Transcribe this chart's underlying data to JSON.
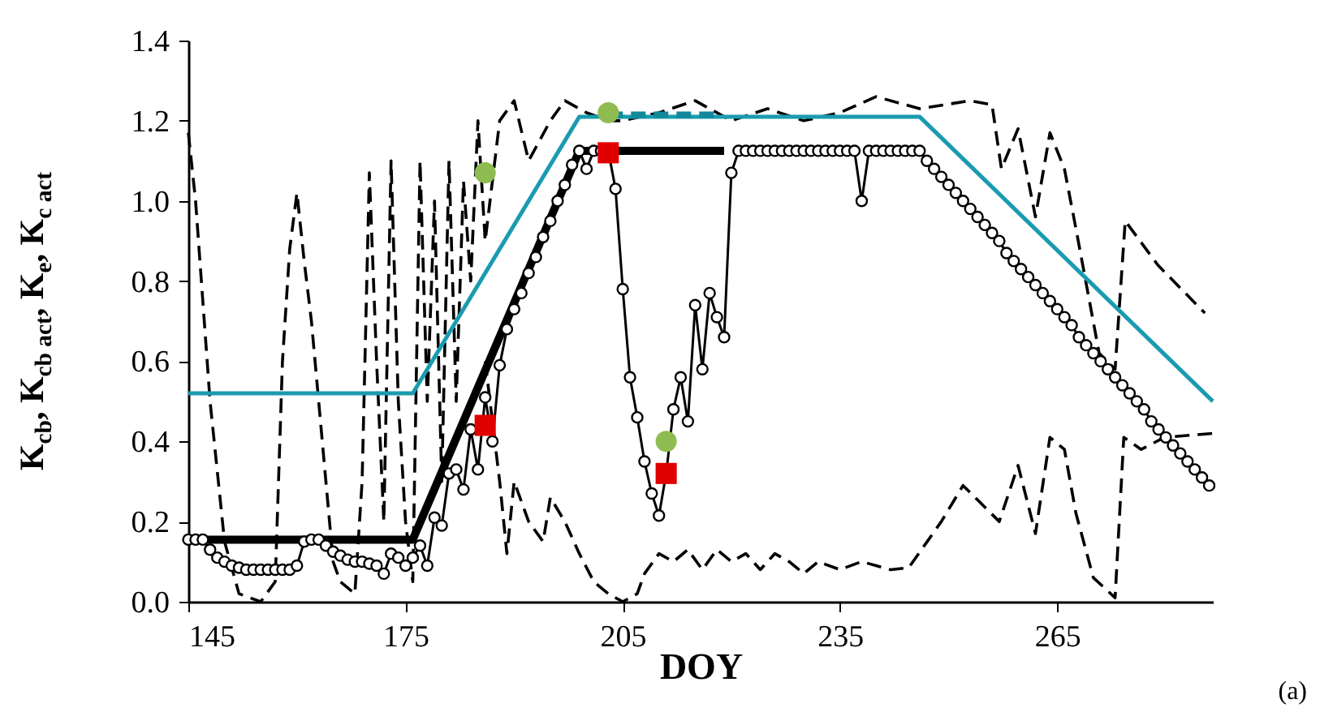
{
  "chart_data": {
    "type": "line",
    "xlabel": "DOY",
    "ylabel": "K$_{cb}$, K$_{cb act}$, K$_{e}$, K$_{c act}$",
    "annotations": [
      "(a)"
    ],
    "xlim": [
      145,
      286.5
    ],
    "xticks": [
      145,
      175,
      205,
      235,
      265
    ],
    "ylim": [
      0,
      1.4
    ],
    "yticks": [
      {
        "value": 0,
        "label": "0.0"
      },
      {
        "value": 0.2,
        "label": "0.2"
      },
      {
        "value": 0.4,
        "label": "0.4"
      },
      {
        "value": 0.6,
        "label": "0.6"
      },
      {
        "value": 0.8,
        "label": "0.8"
      },
      {
        "value": 1,
        "label": "1.0"
      },
      {
        "value": 1.2,
        "label": "1.2"
      },
      {
        "value": 1.4,
        "label": "1.4"
      }
    ],
    "series": [
      {
        "color": "#000000",
        "line_style": "dashed",
        "x": [
          145,
          146,
          148,
          150,
          152,
          155,
          157,
          158,
          159,
          160,
          161,
          162,
          164,
          165,
          166,
          168,
          169,
          170,
          171,
          172,
          173,
          174,
          175,
          176,
          177,
          178,
          179,
          180,
          181,
          182,
          183,
          184,
          185,
          186,
          188,
          190,
          192,
          195,
          197,
          200,
          203,
          205,
          210,
          215,
          220,
          225,
          230,
          235,
          240,
          246,
          253,
          256,
          257.3,
          259.6,
          262,
          264,
          266,
          267.6,
          270.8,
          273,
          274.4,
          278.9,
          285.4
        ],
        "values": [
          1.17,
          1.0,
          0.5,
          0.15,
          0.02,
          0.0,
          0.05,
          0.6,
          0.88,
          1.02,
          0.85,
          0.7,
          0.3,
          0.1,
          0.05,
          0.02,
          0.3,
          1.07,
          0.6,
          0.2,
          1.1,
          0.5,
          0.2,
          0.05,
          1.1,
          0.5,
          1.0,
          0.3,
          1.1,
          0.5,
          1.05,
          0.8,
          1.2,
          0.9,
          1.2,
          1.25,
          1.1,
          1.2,
          1.25,
          1.22,
          1.2,
          1.2,
          1.22,
          1.25,
          1.2,
          1.23,
          1.2,
          1.22,
          1.26,
          1.23,
          1.25,
          1.24,
          1.08,
          1.18,
          0.96,
          1.17,
          1.08,
          0.93,
          0.62,
          0.58,
          0.95,
          0.84,
          0.72
        ]
      },
      {
        "color": "#000000",
        "line_style": "dashed",
        "x": [
          186,
          187,
          188,
          189,
          190,
          191,
          192,
          194,
          195,
          197,
          199,
          201,
          203,
          205,
          207,
          208,
          210,
          212,
          214,
          216,
          218,
          220,
          222,
          224,
          226,
          228,
          230,
          232,
          235,
          238,
          240,
          242,
          244.5,
          249,
          252,
          257,
          259.6,
          262,
          264,
          266,
          267.6,
          270,
          273,
          274.2,
          276.6,
          279.8,
          286.5
        ],
        "values": [
          0.6,
          0.45,
          0.3,
          0.12,
          0.3,
          0.25,
          0.2,
          0.15,
          0.26,
          0.2,
          0.12,
          0.05,
          0.02,
          0.0,
          0.02,
          0.07,
          0.12,
          0.1,
          0.13,
          0.08,
          0.13,
          0.1,
          0.12,
          0.08,
          0.12,
          0.1,
          0.07,
          0.1,
          0.08,
          0.1,
          0.09,
          0.08,
          0.085,
          0.2,
          0.29,
          0.2,
          0.34,
          0.17,
          0.41,
          0.38,
          0.22,
          0.06,
          0.01,
          0.41,
          0.38,
          0.41,
          0.42
        ]
      },
      {
        "color": "#000000",
        "x": [
          145,
          176,
          199,
          219
        ],
        "values": [
          0.155,
          0.155,
          1.125,
          1.125
        ]
      },
      {
        "color": "#1a9bb0",
        "x": [
          145,
          176,
          199,
          246,
          286.5
        ],
        "values": [
          0.52,
          0.52,
          1.21,
          1.21,
          0.5
        ]
      },
      {
        "color": "#13889a",
        "line_style": "dashed",
        "x": [
          203,
          218
        ],
        "values": [
          1.215,
          1.215
        ]
      },
      {
        "color": "#000000",
        "marker": "circle",
        "x": [
          145,
          146,
          147,
          148,
          149,
          150,
          151,
          152,
          153,
          154,
          155,
          156,
          157,
          158,
          159,
          160,
          161,
          162,
          163,
          164,
          165,
          166,
          167,
          168,
          169,
          170,
          171,
          172,
          173,
          174,
          175,
          176,
          177,
          178,
          179,
          180,
          181,
          182,
          183,
          184,
          185,
          186,
          187,
          188,
          189,
          190,
          191,
          192,
          193,
          194,
          195,
          196,
          197,
          198,
          199,
          200,
          201,
          202,
          203,
          204,
          205,
          206,
          207,
          208,
          209,
          210,
          211,
          212,
          213,
          214,
          215,
          216,
          217,
          218,
          219,
          220,
          221,
          222,
          223,
          224,
          225,
          226,
          227,
          228,
          229,
          230,
          231,
          232,
          233,
          234,
          235,
          236,
          237,
          238,
          239,
          240,
          241,
          242,
          243,
          244,
          245,
          246,
          247,
          248,
          249,
          250,
          251,
          252,
          253,
          254,
          255,
          256,
          257,
          258,
          259,
          260,
          261,
          262,
          263,
          264,
          265,
          266,
          267,
          268,
          269,
          270,
          271,
          272,
          273,
          274,
          275,
          276,
          277,
          278,
          279,
          280,
          281,
          282,
          283,
          284,
          285,
          286
        ],
        "values": [
          0.155,
          0.155,
          0.155,
          0.13,
          0.11,
          0.1,
          0.09,
          0.085,
          0.08,
          0.08,
          0.08,
          0.08,
          0.08,
          0.08,
          0.08,
          0.09,
          0.15,
          0.155,
          0.155,
          0.14,
          0.125,
          0.115,
          0.105,
          0.1,
          0.1,
          0.095,
          0.09,
          0.07,
          0.12,
          0.11,
          0.09,
          0.11,
          0.14,
          0.09,
          0.21,
          0.19,
          0.32,
          0.33,
          0.28,
          0.43,
          0.33,
          0.51,
          0.4,
          0.59,
          0.68,
          0.73,
          0.77,
          0.82,
          0.86,
          0.91,
          0.95,
          1.0,
          1.04,
          1.09,
          1.125,
          1.08,
          1.125,
          1.125,
          1.125,
          1.03,
          0.78,
          0.56,
          0.46,
          0.35,
          0.27,
          0.215,
          0.32,
          0.48,
          0.56,
          0.45,
          0.74,
          0.58,
          0.77,
          0.71,
          0.66,
          1.07,
          1.125,
          1.125,
          1.125,
          1.125,
          1.125,
          1.125,
          1.125,
          1.125,
          1.125,
          1.125,
          1.125,
          1.125,
          1.125,
          1.125,
          1.125,
          1.125,
          1.125,
          1.0,
          1.125,
          1.125,
          1.125,
          1.125,
          1.125,
          1.125,
          1.125,
          1.125,
          1.1,
          1.08,
          1.06,
          1.04,
          1.02,
          1.0,
          0.98,
          0.96,
          0.94,
          0.92,
          0.9,
          0.87,
          0.85,
          0.83,
          0.81,
          0.79,
          0.77,
          0.75,
          0.73,
          0.71,
          0.69,
          0.66,
          0.64,
          0.62,
          0.6,
          0.58,
          0.56,
          0.54,
          0.52,
          0.5,
          0.48,
          0.45,
          0.43,
          0.41,
          0.39,
          0.37,
          0.35,
          0.33,
          0.31,
          0.29
        ]
      },
      {
        "type": "scatter",
        "color": "#8fbc50",
        "marker": "circle",
        "x": [
          186,
          203,
          211
        ],
        "values": [
          1.07,
          1.22,
          0.4
        ]
      },
      {
        "type": "scatter",
        "color": "#e00000",
        "marker": "square",
        "x": [
          186,
          203,
          211
        ],
        "values": [
          0.44,
          1.12,
          0.32
        ]
      }
    ]
  }
}
